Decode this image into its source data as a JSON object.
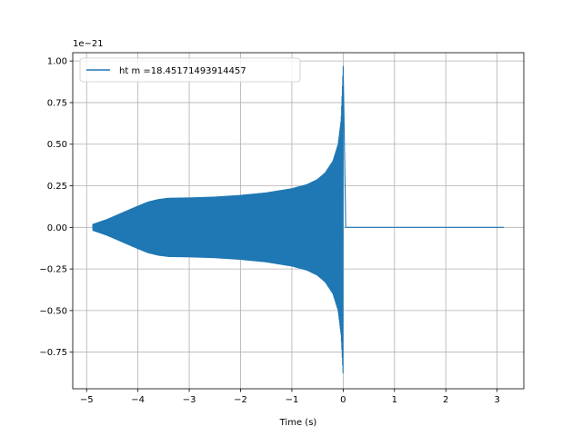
{
  "chart_data": {
    "type": "line",
    "title": "",
    "xlabel": "Time (s)",
    "ylabel": "",
    "y_offset_label": "1e−21",
    "xlim": [
      -5.27,
      3.52
    ],
    "ylim": [
      -0.97,
      1.05
    ],
    "x_ticks": [
      -5,
      -4,
      -3,
      -2,
      -1,
      0,
      1,
      2,
      3
    ],
    "y_ticks": [
      -0.75,
      -0.5,
      -0.25,
      0.0,
      0.25,
      0.5,
      0.75,
      1.0
    ],
    "x_tick_labels": [
      "−5",
      "−4",
      "−3",
      "−2",
      "−1",
      "0",
      "1",
      "2",
      "3"
    ],
    "y_tick_labels": [
      "−0.75",
      "−0.50",
      "−0.25",
      "0.00",
      "0.25",
      "0.50",
      "0.75",
      "1.00"
    ],
    "grid": true,
    "legend_position": "top-left",
    "series": [
      {
        "name": "ht m =18.45171493914457",
        "color": "#1f77b4",
        "envelope": {
          "x": [
            -4.88,
            -4.6,
            -4.3,
            -4.0,
            -3.8,
            -3.6,
            -3.4,
            -3.0,
            -2.5,
            -2.0,
            -1.5,
            -1.0,
            -0.7,
            -0.5,
            -0.35,
            -0.2,
            -0.1,
            -0.04,
            0.0,
            0.02,
            0.05
          ],
          "upper": [
            0.02,
            0.05,
            0.09,
            0.13,
            0.155,
            0.17,
            0.178,
            0.18,
            0.185,
            0.195,
            0.21,
            0.235,
            0.26,
            0.29,
            0.33,
            0.4,
            0.5,
            0.65,
            0.97,
            0.02,
            0.0
          ],
          "lower": [
            -0.02,
            -0.05,
            -0.09,
            -0.13,
            -0.155,
            -0.17,
            -0.178,
            -0.18,
            -0.185,
            -0.195,
            -0.21,
            -0.235,
            -0.26,
            -0.29,
            -0.33,
            -0.4,
            -0.5,
            -0.65,
            -0.9,
            -0.02,
            0.0
          ]
        },
        "tail": {
          "x": [
            0.05,
            3.13
          ],
          "y": [
            0.0,
            0.0
          ]
        }
      }
    ]
  }
}
